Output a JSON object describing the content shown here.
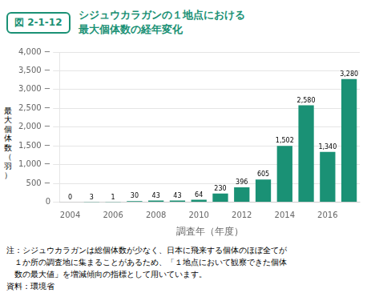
{
  "chart_data": {
    "type": "bar",
    "title": "シジュウカラガンの１地点における\n最大個体数の経年変化",
    "subtitle": "図 2-1-12",
    "xlabel": "調査年（年度）",
    "ylabel": "最\n大\n個\n体\n数\n（\n羽\n）",
    "categories": [
      "2004",
      null,
      "2006",
      null,
      "2008",
      null,
      "2010",
      null,
      "2012",
      null,
      "2014",
      null,
      "2016",
      null
    ],
    "values": [
      0,
      3,
      1,
      30,
      43,
      43,
      64,
      230,
      396,
      605,
      1502,
      2580,
      1340,
      3280
    ],
    "value_labels": [
      "0",
      "3",
      "1",
      "30",
      "43",
      "43",
      "64",
      "230",
      "396",
      "605",
      "1,502",
      "2,580",
      "1,340",
      "3,280"
    ],
    "data_labels": true,
    "color": "#1a9175",
    "ylim": [
      0,
      4000
    ],
    "yticks": [
      0,
      {
        "value": 500,
        "label": "500 −"
      },
      {
        "value": 1000,
        "label": "1,000 −"
      },
      {
        "value": 1500,
        "label": "1,500 −"
      },
      {
        "value": 2000,
        "label": "2,000 −"
      },
      {
        "value": 2500,
        "label": "2,500 −"
      },
      {
        "value": 3000,
        "label": "3,000 −"
      },
      {
        "value": 3500,
        "label": "3,500 −"
      },
      {
        "value": 4000,
        "label": "4,000 −"
      }
    ],
    "grid": true,
    "annotations": [
      "注：シジュウカラガンは総個体数が少なく、日本に飛来する個体のほぼ全てが",
      "　１か所の調査地に集まることがあるため、「１地点において観察できた個体",
      "　数の最大値」を増減傾向の指標として用いています。",
      "資料：環境省"
    ]
  }
}
